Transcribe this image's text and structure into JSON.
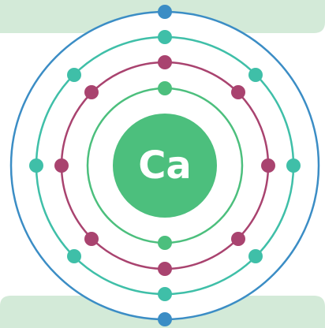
{
  "element": {
    "symbol": "Ca"
  }
}
